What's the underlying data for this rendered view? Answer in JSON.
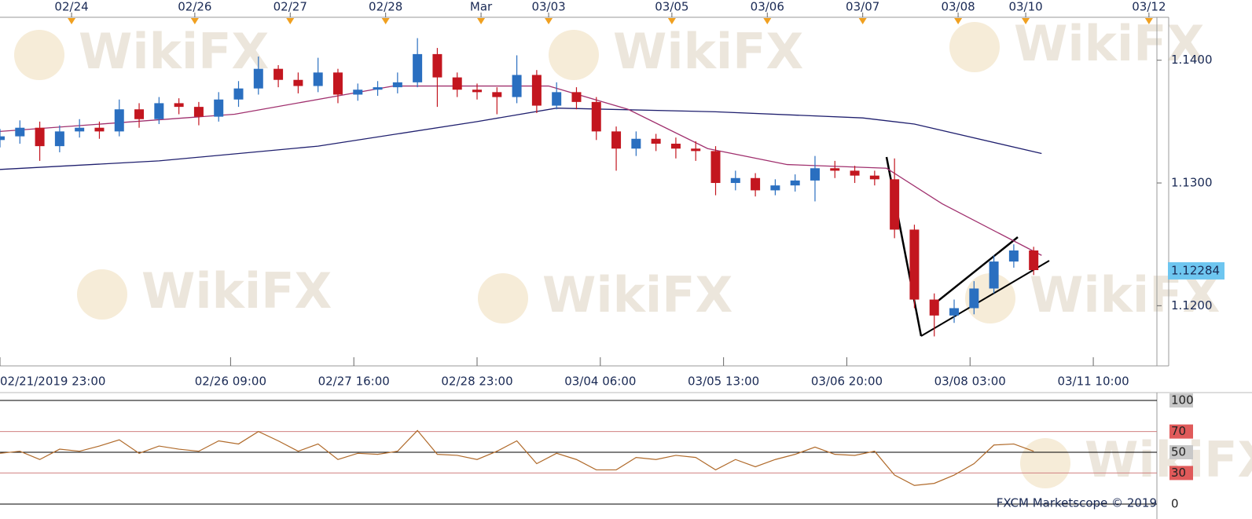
{
  "watermark": "WikiFX",
  "chart_data": [
    {
      "type": "candlestick",
      "x": [
        0,
        5,
        10,
        15,
        20,
        25,
        30,
        35,
        40,
        45,
        50,
        55,
        60,
        65,
        70,
        75,
        80,
        85,
        90,
        95,
        100,
        105,
        110,
        115,
        120,
        125,
        130,
        135,
        140,
        145,
        150,
        155,
        160,
        165,
        170,
        175,
        180,
        185,
        190,
        195,
        200,
        205,
        210,
        215,
        220,
        225,
        230,
        235,
        240,
        245,
        250,
        255,
        260
      ],
      "open": [
        1.1335,
        1.1338,
        1.1345,
        1.133,
        1.1342,
        1.1345,
        1.1342,
        1.136,
        1.1352,
        1.1365,
        1.1362,
        1.1354,
        1.1368,
        1.1377,
        1.1393,
        1.1384,
        1.1379,
        1.139,
        1.1372,
        1.1376,
        1.1378,
        1.1382,
        1.1405,
        1.1386,
        1.1376,
        1.1374,
        1.137,
        1.1388,
        1.1363,
        1.1374,
        1.1366,
        1.1342,
        1.1328,
        1.1336,
        1.1332,
        1.1328,
        1.1326,
        1.13,
        1.1304,
        1.1294,
        1.1298,
        1.1302,
        1.1312,
        1.131,
        1.1306,
        1.1303,
        1.1262,
        1.1205,
        1.1192,
        1.1198,
        1.1214,
        1.1236,
        1.1245
      ],
      "high": [
        1.1344,
        1.1351,
        1.135,
        1.1347,
        1.1352,
        1.135,
        1.1368,
        1.1365,
        1.137,
        1.1369,
        1.1366,
        1.1374,
        1.1383,
        1.1403,
        1.1396,
        1.139,
        1.1402,
        1.1393,
        1.1381,
        1.1383,
        1.139,
        1.1418,
        1.141,
        1.139,
        1.1381,
        1.1378,
        1.1404,
        1.1392,
        1.1382,
        1.1378,
        1.137,
        1.1346,
        1.1342,
        1.134,
        1.1337,
        1.1334,
        1.133,
        1.131,
        1.1308,
        1.1303,
        1.1307,
        1.1322,
        1.1318,
        1.1314,
        1.131,
        1.132,
        1.1266,
        1.121,
        1.1205,
        1.122,
        1.1241,
        1.125,
        1.1248
      ],
      "low": [
        1.1329,
        1.1332,
        1.1318,
        1.1325,
        1.1337,
        1.1336,
        1.1338,
        1.1345,
        1.1348,
        1.1356,
        1.1347,
        1.135,
        1.1362,
        1.1372,
        1.1378,
        1.1373,
        1.1374,
        1.1365,
        1.1367,
        1.1371,
        1.1373,
        1.1378,
        1.1362,
        1.137,
        1.1368,
        1.1356,
        1.1365,
        1.1357,
        1.136,
        1.136,
        1.1335,
        1.131,
        1.1322,
        1.1326,
        1.132,
        1.1318,
        1.129,
        1.1294,
        1.1289,
        1.129,
        1.1293,
        1.1285,
        1.1304,
        1.13,
        1.1298,
        1.1255,
        1.1198,
        1.1175,
        1.1186,
        1.1193,
        1.121,
        1.1231,
        1.1225
      ],
      "close": [
        1.1338,
        1.1345,
        1.133,
        1.1342,
        1.1345,
        1.1342,
        1.136,
        1.1352,
        1.1365,
        1.1362,
        1.1354,
        1.1368,
        1.1377,
        1.1393,
        1.1384,
        1.1379,
        1.139,
        1.1372,
        1.1376,
        1.1378,
        1.1382,
        1.1405,
        1.1386,
        1.1376,
        1.1374,
        1.137,
        1.1388,
        1.1363,
        1.1374,
        1.1366,
        1.1342,
        1.1328,
        1.1336,
        1.1332,
        1.1328,
        1.1326,
        1.13,
        1.1304,
        1.1294,
        1.1298,
        1.1302,
        1.1312,
        1.131,
        1.1306,
        1.1303,
        1.1262,
        1.1205,
        1.1192,
        1.1198,
        1.1214,
        1.1236,
        1.1245,
        1.1229
      ],
      "up_color": "#2a6fc0",
      "down_color": "#c3161f",
      "overlays": [
        {
          "color": "#1f1f6e",
          "x": [
            0,
            40,
            80,
            120,
            140,
            180,
            217,
            230,
            262
          ],
          "values": [
            1.1311,
            1.1318,
            1.133,
            1.135,
            1.1361,
            1.1358,
            1.1353,
            1.1348,
            1.1324
          ]
        },
        {
          "color": "#a0306e",
          "x": [
            0,
            59,
            99,
            138,
            158,
            178,
            198,
            223,
            237,
            262
          ],
          "values": [
            1.1342,
            1.1356,
            1.1379,
            1.1379,
            1.136,
            1.1328,
            1.1315,
            1.1312,
            1.1283,
            1.1241
          ]
        }
      ],
      "last_price": 1.12284,
      "last_price_color": "#6ec6f0",
      "xlim": [
        0,
        291
      ],
      "xticks": [
        {
          "value": 0,
          "label": "02/21/2019 23:00"
        },
        {
          "value": 58,
          "label": "02/26 09:00"
        },
        {
          "value": 89,
          "label": "02/27 16:00"
        },
        {
          "value": 120,
          "label": "02/28 23:00"
        },
        {
          "value": 151,
          "label": "03/04 06:00"
        },
        {
          "value": 182,
          "label": "03/05 13:00"
        },
        {
          "value": 213,
          "label": "03/06 20:00"
        },
        {
          "value": 244,
          "label": "03/08 03:00"
        },
        {
          "value": 275,
          "label": "03/11 10:00"
        }
      ],
      "top_xticks": [
        {
          "value": 18,
          "label": "02/24"
        },
        {
          "value": 49,
          "label": "02/26"
        },
        {
          "value": 73,
          "label": "02/27"
        },
        {
          "value": 97,
          "label": "02/28"
        },
        {
          "value": 121,
          "label": "Mar"
        },
        {
          "value": 138,
          "label": "03/03"
        },
        {
          "value": 169,
          "label": "03/05"
        },
        {
          "value": 193,
          "label": "03/06"
        },
        {
          "value": 217,
          "label": "03/07"
        },
        {
          "value": 241,
          "label": "03/08"
        },
        {
          "value": 258,
          "label": "03/10"
        },
        {
          "value": 289,
          "label": "03/12"
        }
      ],
      "ylim": [
        1.1158,
        1.1435
      ],
      "yticks": [
        {
          "value": 1.12,
          "label": "1.1200"
        },
        {
          "value": 1.13,
          "label": "1.1300"
        },
        {
          "value": 1.14,
          "label": "1.1400"
        }
      ]
    },
    {
      "type": "line",
      "x": [
        0,
        5,
        10,
        15,
        20,
        25,
        30,
        35,
        40,
        45,
        50,
        55,
        60,
        65,
        70,
        75,
        80,
        85,
        90,
        95,
        100,
        105,
        110,
        115,
        120,
        125,
        130,
        135,
        140,
        145,
        150,
        155,
        160,
        165,
        170,
        175,
        180,
        185,
        190,
        195,
        200,
        205,
        210,
        215,
        220,
        225,
        230,
        235,
        240,
        245,
        250,
        255,
        260
      ],
      "values": [
        49,
        51,
        43,
        53,
        51,
        56,
        62,
        49,
        56,
        53,
        51,
        61,
        58,
        70,
        61,
        51,
        58,
        43,
        49,
        48,
        51,
        71,
        48,
        47,
        43,
        51,
        61,
        39,
        49,
        43,
        33,
        33,
        45,
        43,
        47,
        45,
        33,
        43,
        36,
        43,
        48,
        55,
        48,
        47,
        51,
        28,
        18,
        20,
        28,
        39,
        57,
        58,
        51
      ],
      "color": "#b06a2a",
      "xlim": [
        0,
        291
      ],
      "ylim": [
        0,
        100
      ],
      "yticks": [
        0,
        30,
        50,
        70,
        100
      ],
      "tick_line_colors": [
        "#000000",
        "#d08080",
        "#000000",
        "#d08080",
        "#000000"
      ],
      "tick_label_backgrounds": [
        "#ffffff",
        "#e05a5a",
        "#c8c8c8",
        "#e05a5a",
        "#c8c8c8"
      ],
      "credit": "FXCM Marketscope © 2019"
    }
  ]
}
